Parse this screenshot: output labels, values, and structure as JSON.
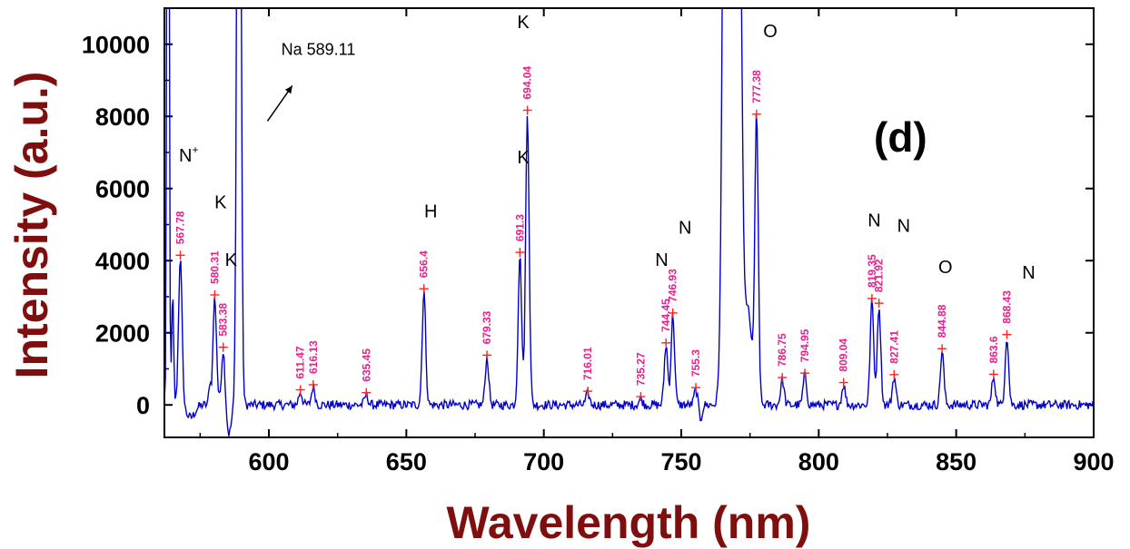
{
  "chart_data": {
    "type": "line",
    "xlabel": "Wavelength (nm)",
    "ylabel": "Intensity (a.u.)",
    "panel_label": "(d)",
    "xlim": [
      562,
      900
    ],
    "ylim": [
      -900,
      11000
    ],
    "xticks": [
      "600",
      "650",
      "700",
      "750",
      "800",
      "850",
      "900"
    ],
    "yticks": [
      "0",
      "2000",
      "4000",
      "6000",
      "8000",
      "10000"
    ],
    "colors": {
      "line": "#0000cc",
      "peak_marker": "#ff2222",
      "peak_label": "#e8208a",
      "axis_title": "#7f0f0f"
    },
    "series": [
      {
        "peaks": [
          {
            "x": 567.78,
            "y": 4150,
            "label": "567.78"
          },
          {
            "x": 580.31,
            "y": 3050,
            "label": "580.31"
          },
          {
            "x": 583.38,
            "y": 1600,
            "label": "583.38"
          },
          {
            "x": 611.47,
            "y": 420,
            "label": "611.47"
          },
          {
            "x": 616.13,
            "y": 560,
            "label": "616.13"
          },
          {
            "x": 635.45,
            "y": 340,
            "label": "635.45"
          },
          {
            "x": 656.4,
            "y": 3220,
            "label": "656.4"
          },
          {
            "x": 679.33,
            "y": 1380,
            "label": "679.33"
          },
          {
            "x": 691.3,
            "y": 4230,
            "label": "691.3"
          },
          {
            "x": 694.04,
            "y": 8170,
            "label": "694.04"
          },
          {
            "x": 716.01,
            "y": 380,
            "label": "716.01"
          },
          {
            "x": 735.27,
            "y": 230,
            "label": "735.27"
          },
          {
            "x": 744.45,
            "y": 1720,
            "label": "744.45"
          },
          {
            "x": 746.93,
            "y": 2550,
            "label": "746.93"
          },
          {
            "x": 755.3,
            "y": 480,
            "label": "755.3"
          },
          {
            "x": 777.38,
            "y": 8060,
            "label": "777.38"
          },
          {
            "x": 786.75,
            "y": 760,
            "label": "786.75"
          },
          {
            "x": 794.95,
            "y": 880,
            "label": "794.95"
          },
          {
            "x": 809.04,
            "y": 620,
            "label": "809.04"
          },
          {
            "x": 819.35,
            "y": 2950,
            "label": "819.35"
          },
          {
            "x": 821.92,
            "y": 2820,
            "label": "821.92"
          },
          {
            "x": 827.41,
            "y": 840,
            "label": "827.41"
          },
          {
            "x": 844.88,
            "y": 1560,
            "label": "844.88"
          },
          {
            "x": 863.6,
            "y": 850,
            "label": "863.6"
          },
          {
            "x": 868.43,
            "y": 1950,
            "label": "868.43"
          }
        ],
        "saturated_peaks": [
          {
            "x": 563.3,
            "width": 0.5,
            "y": 11000
          },
          {
            "x": 589.11,
            "width": 0.9,
            "y": 11000
          },
          {
            "x": 769.9,
            "width": 2.0,
            "y": 11000
          },
          {
            "x": 766.5,
            "width": 1.6,
            "y": 11000
          }
        ]
      }
    ],
    "annotations": [
      {
        "text": "N",
        "sup": "+",
        "x": 567.3,
        "y": 6750
      },
      {
        "text": "K",
        "x": 580.2,
        "y": 5450
      },
      {
        "text": "K",
        "x": 584.0,
        "y": 3850
      },
      {
        "text": "H",
        "x": 656.5,
        "y": 5200
      },
      {
        "text": "K",
        "x": 690.3,
        "y": 10450
      },
      {
        "text": "K",
        "x": 690.3,
        "y": 6700
      },
      {
        "text": "N",
        "x": 740.5,
        "y": 3850
      },
      {
        "text": "N",
        "x": 749.0,
        "y": 4750
      },
      {
        "text": "O",
        "x": 779.8,
        "y": 10200
      },
      {
        "text": "N",
        "x": 817.8,
        "y": 4950
      },
      {
        "text": "N",
        "x": 828.5,
        "y": 4800
      },
      {
        "text": "O",
        "x": 843.5,
        "y": 3650
      },
      {
        "text": "N",
        "x": 874.0,
        "y": 3500
      }
    ],
    "arrow_note": {
      "text": "Na 589.11",
      "x": 604.5,
      "y": 9700,
      "arrow_from": [
        599.5,
        7870
      ],
      "arrow_to": [
        608.5,
        8850
      ]
    }
  }
}
